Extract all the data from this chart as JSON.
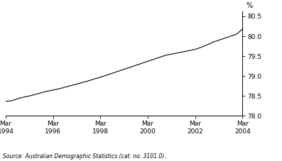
{
  "title": "",
  "ylabel": "%",
  "ylim": [
    78.0,
    80.625
  ],
  "yticks": [
    78.0,
    78.5,
    79.0,
    79.5,
    80.0,
    80.5
  ],
  "source_text": "Source: Australian Demographic Statistics (cat. no. 3101.0).",
  "line_color": "#000000",
  "background_color": "#ffffff",
  "x_tick_labels": [
    "Mar\n1994",
    "Mar\n1996",
    "Mar\n1998",
    "Mar\n2000",
    "Mar\n2002",
    "Mar\n2004"
  ],
  "x_tick_positions": [
    0,
    8,
    16,
    24,
    32,
    40
  ],
  "data": [
    [
      0,
      78.37
    ],
    [
      1,
      78.38
    ],
    [
      2,
      78.43
    ],
    [
      3,
      78.47
    ],
    [
      4,
      78.5
    ],
    [
      5,
      78.54
    ],
    [
      6,
      78.58
    ],
    [
      7,
      78.62
    ],
    [
      8,
      78.65
    ],
    [
      9,
      78.68
    ],
    [
      10,
      78.72
    ],
    [
      11,
      78.76
    ],
    [
      12,
      78.8
    ],
    [
      13,
      78.84
    ],
    [
      14,
      78.88
    ],
    [
      15,
      78.93
    ],
    [
      16,
      78.97
    ],
    [
      17,
      79.02
    ],
    [
      18,
      79.07
    ],
    [
      19,
      79.12
    ],
    [
      20,
      79.17
    ],
    [
      21,
      79.22
    ],
    [
      22,
      79.27
    ],
    [
      23,
      79.32
    ],
    [
      24,
      79.37
    ],
    [
      25,
      79.42
    ],
    [
      26,
      79.47
    ],
    [
      27,
      79.52
    ],
    [
      28,
      79.55
    ],
    [
      29,
      79.58
    ],
    [
      30,
      79.61
    ],
    [
      31,
      79.64
    ],
    [
      32,
      79.67
    ],
    [
      33,
      79.72
    ],
    [
      34,
      79.78
    ],
    [
      35,
      79.85
    ],
    [
      36,
      79.9
    ],
    [
      37,
      79.95
    ],
    [
      38,
      80.0
    ],
    [
      39,
      80.05
    ],
    [
      40,
      80.18
    ]
  ]
}
